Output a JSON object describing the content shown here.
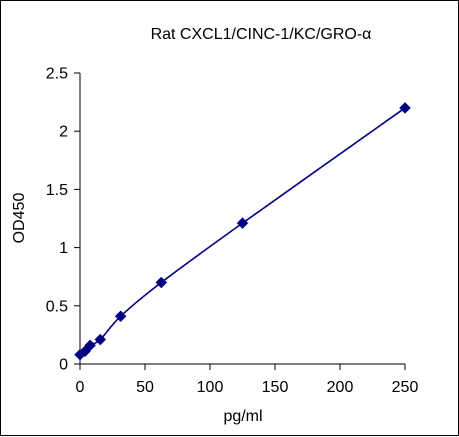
{
  "chart_data": {
    "type": "line",
    "title": "Rat CXCL1/CINC-1/KC/GRO-α",
    "xlabel": "pg/ml",
    "ylabel": "OD450",
    "xlim": [
      0,
      250
    ],
    "ylim": [
      0,
      2.5
    ],
    "x_ticks": [
      "0",
      "50",
      "100",
      "150",
      "200",
      "250"
    ],
    "y_ticks": [
      "0",
      "0.5",
      "1",
      "1.5",
      "2",
      "2.5"
    ],
    "grid": false,
    "legend": "none",
    "series": [
      {
        "x": [
          0,
          3.9,
          7.8,
          15.6,
          31.25,
          62.5,
          125,
          250
        ],
        "y": [
          0.08,
          0.11,
          0.16,
          0.21,
          0.41,
          0.7,
          1.21,
          2.2
        ],
        "marker": "diamond",
        "color": "#000080"
      }
    ]
  }
}
